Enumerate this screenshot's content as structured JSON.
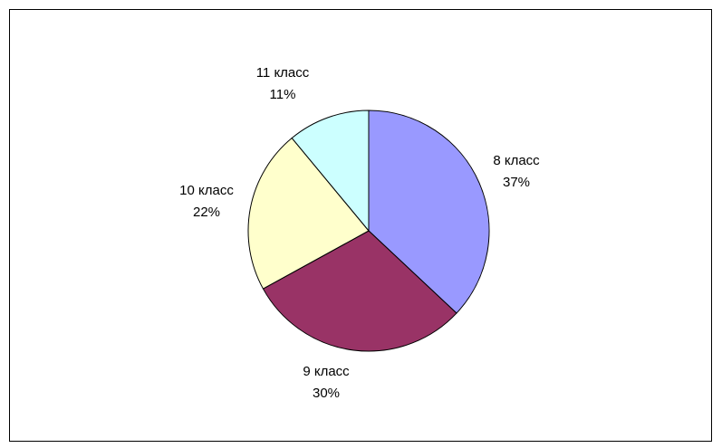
{
  "chart_data": {
    "type": "pie",
    "categories": [
      "8 класс",
      "9 класс",
      "10 класс",
      "11 класс"
    ],
    "values": [
      37,
      30,
      22,
      11
    ],
    "value_labels": [
      "37%",
      "30%",
      "22%",
      "11%"
    ],
    "colors": [
      "#9999FF",
      "#993366",
      "#FFFFCC",
      "#CCFFFF"
    ],
    "start_angle_deg": 0,
    "direction": "clockwise",
    "legend": "none",
    "title": ""
  }
}
